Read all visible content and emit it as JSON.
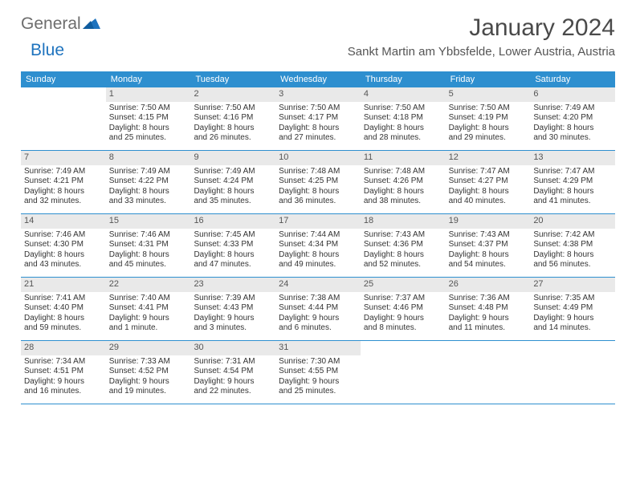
{
  "brand": {
    "word1": "General",
    "word2": "Blue"
  },
  "title": "January 2024",
  "location": "Sankt Martin am Ybbsfelde, Lower Austria, Austria",
  "colors": {
    "header_bg": "#2e8fcf",
    "header_fg": "#ffffff",
    "daynum_bg": "#e9e9e9",
    "daynum_fg": "#555555",
    "text": "#333333",
    "rule": "#2e8fcf",
    "logo_gray": "#6d6d6d",
    "logo_blue": "#1e73be"
  },
  "day_names": [
    "Sunday",
    "Monday",
    "Tuesday",
    "Wednesday",
    "Thursday",
    "Friday",
    "Saturday"
  ],
  "weeks": [
    [
      null,
      {
        "n": "1",
        "sr": "Sunrise: 7:50 AM",
        "ss": "Sunset: 4:15 PM",
        "d1": "Daylight: 8 hours",
        "d2": "and 25 minutes."
      },
      {
        "n": "2",
        "sr": "Sunrise: 7:50 AM",
        "ss": "Sunset: 4:16 PM",
        "d1": "Daylight: 8 hours",
        "d2": "and 26 minutes."
      },
      {
        "n": "3",
        "sr": "Sunrise: 7:50 AM",
        "ss": "Sunset: 4:17 PM",
        "d1": "Daylight: 8 hours",
        "d2": "and 27 minutes."
      },
      {
        "n": "4",
        "sr": "Sunrise: 7:50 AM",
        "ss": "Sunset: 4:18 PM",
        "d1": "Daylight: 8 hours",
        "d2": "and 28 minutes."
      },
      {
        "n": "5",
        "sr": "Sunrise: 7:50 AM",
        "ss": "Sunset: 4:19 PM",
        "d1": "Daylight: 8 hours",
        "d2": "and 29 minutes."
      },
      {
        "n": "6",
        "sr": "Sunrise: 7:49 AM",
        "ss": "Sunset: 4:20 PM",
        "d1": "Daylight: 8 hours",
        "d2": "and 30 minutes."
      }
    ],
    [
      {
        "n": "7",
        "sr": "Sunrise: 7:49 AM",
        "ss": "Sunset: 4:21 PM",
        "d1": "Daylight: 8 hours",
        "d2": "and 32 minutes."
      },
      {
        "n": "8",
        "sr": "Sunrise: 7:49 AM",
        "ss": "Sunset: 4:22 PM",
        "d1": "Daylight: 8 hours",
        "d2": "and 33 minutes."
      },
      {
        "n": "9",
        "sr": "Sunrise: 7:49 AM",
        "ss": "Sunset: 4:24 PM",
        "d1": "Daylight: 8 hours",
        "d2": "and 35 minutes."
      },
      {
        "n": "10",
        "sr": "Sunrise: 7:48 AM",
        "ss": "Sunset: 4:25 PM",
        "d1": "Daylight: 8 hours",
        "d2": "and 36 minutes."
      },
      {
        "n": "11",
        "sr": "Sunrise: 7:48 AM",
        "ss": "Sunset: 4:26 PM",
        "d1": "Daylight: 8 hours",
        "d2": "and 38 minutes."
      },
      {
        "n": "12",
        "sr": "Sunrise: 7:47 AM",
        "ss": "Sunset: 4:27 PM",
        "d1": "Daylight: 8 hours",
        "d2": "and 40 minutes."
      },
      {
        "n": "13",
        "sr": "Sunrise: 7:47 AM",
        "ss": "Sunset: 4:29 PM",
        "d1": "Daylight: 8 hours",
        "d2": "and 41 minutes."
      }
    ],
    [
      {
        "n": "14",
        "sr": "Sunrise: 7:46 AM",
        "ss": "Sunset: 4:30 PM",
        "d1": "Daylight: 8 hours",
        "d2": "and 43 minutes."
      },
      {
        "n": "15",
        "sr": "Sunrise: 7:46 AM",
        "ss": "Sunset: 4:31 PM",
        "d1": "Daylight: 8 hours",
        "d2": "and 45 minutes."
      },
      {
        "n": "16",
        "sr": "Sunrise: 7:45 AM",
        "ss": "Sunset: 4:33 PM",
        "d1": "Daylight: 8 hours",
        "d2": "and 47 minutes."
      },
      {
        "n": "17",
        "sr": "Sunrise: 7:44 AM",
        "ss": "Sunset: 4:34 PM",
        "d1": "Daylight: 8 hours",
        "d2": "and 49 minutes."
      },
      {
        "n": "18",
        "sr": "Sunrise: 7:43 AM",
        "ss": "Sunset: 4:36 PM",
        "d1": "Daylight: 8 hours",
        "d2": "and 52 minutes."
      },
      {
        "n": "19",
        "sr": "Sunrise: 7:43 AM",
        "ss": "Sunset: 4:37 PM",
        "d1": "Daylight: 8 hours",
        "d2": "and 54 minutes."
      },
      {
        "n": "20",
        "sr": "Sunrise: 7:42 AM",
        "ss": "Sunset: 4:38 PM",
        "d1": "Daylight: 8 hours",
        "d2": "and 56 minutes."
      }
    ],
    [
      {
        "n": "21",
        "sr": "Sunrise: 7:41 AM",
        "ss": "Sunset: 4:40 PM",
        "d1": "Daylight: 8 hours",
        "d2": "and 59 minutes."
      },
      {
        "n": "22",
        "sr": "Sunrise: 7:40 AM",
        "ss": "Sunset: 4:41 PM",
        "d1": "Daylight: 9 hours",
        "d2": "and 1 minute."
      },
      {
        "n": "23",
        "sr": "Sunrise: 7:39 AM",
        "ss": "Sunset: 4:43 PM",
        "d1": "Daylight: 9 hours",
        "d2": "and 3 minutes."
      },
      {
        "n": "24",
        "sr": "Sunrise: 7:38 AM",
        "ss": "Sunset: 4:44 PM",
        "d1": "Daylight: 9 hours",
        "d2": "and 6 minutes."
      },
      {
        "n": "25",
        "sr": "Sunrise: 7:37 AM",
        "ss": "Sunset: 4:46 PM",
        "d1": "Daylight: 9 hours",
        "d2": "and 8 minutes."
      },
      {
        "n": "26",
        "sr": "Sunrise: 7:36 AM",
        "ss": "Sunset: 4:48 PM",
        "d1": "Daylight: 9 hours",
        "d2": "and 11 minutes."
      },
      {
        "n": "27",
        "sr": "Sunrise: 7:35 AM",
        "ss": "Sunset: 4:49 PM",
        "d1": "Daylight: 9 hours",
        "d2": "and 14 minutes."
      }
    ],
    [
      {
        "n": "28",
        "sr": "Sunrise: 7:34 AM",
        "ss": "Sunset: 4:51 PM",
        "d1": "Daylight: 9 hours",
        "d2": "and 16 minutes."
      },
      {
        "n": "29",
        "sr": "Sunrise: 7:33 AM",
        "ss": "Sunset: 4:52 PM",
        "d1": "Daylight: 9 hours",
        "d2": "and 19 minutes."
      },
      {
        "n": "30",
        "sr": "Sunrise: 7:31 AM",
        "ss": "Sunset: 4:54 PM",
        "d1": "Daylight: 9 hours",
        "d2": "and 22 minutes."
      },
      {
        "n": "31",
        "sr": "Sunrise: 7:30 AM",
        "ss": "Sunset: 4:55 PM",
        "d1": "Daylight: 9 hours",
        "d2": "and 25 minutes."
      },
      null,
      null,
      null
    ]
  ]
}
